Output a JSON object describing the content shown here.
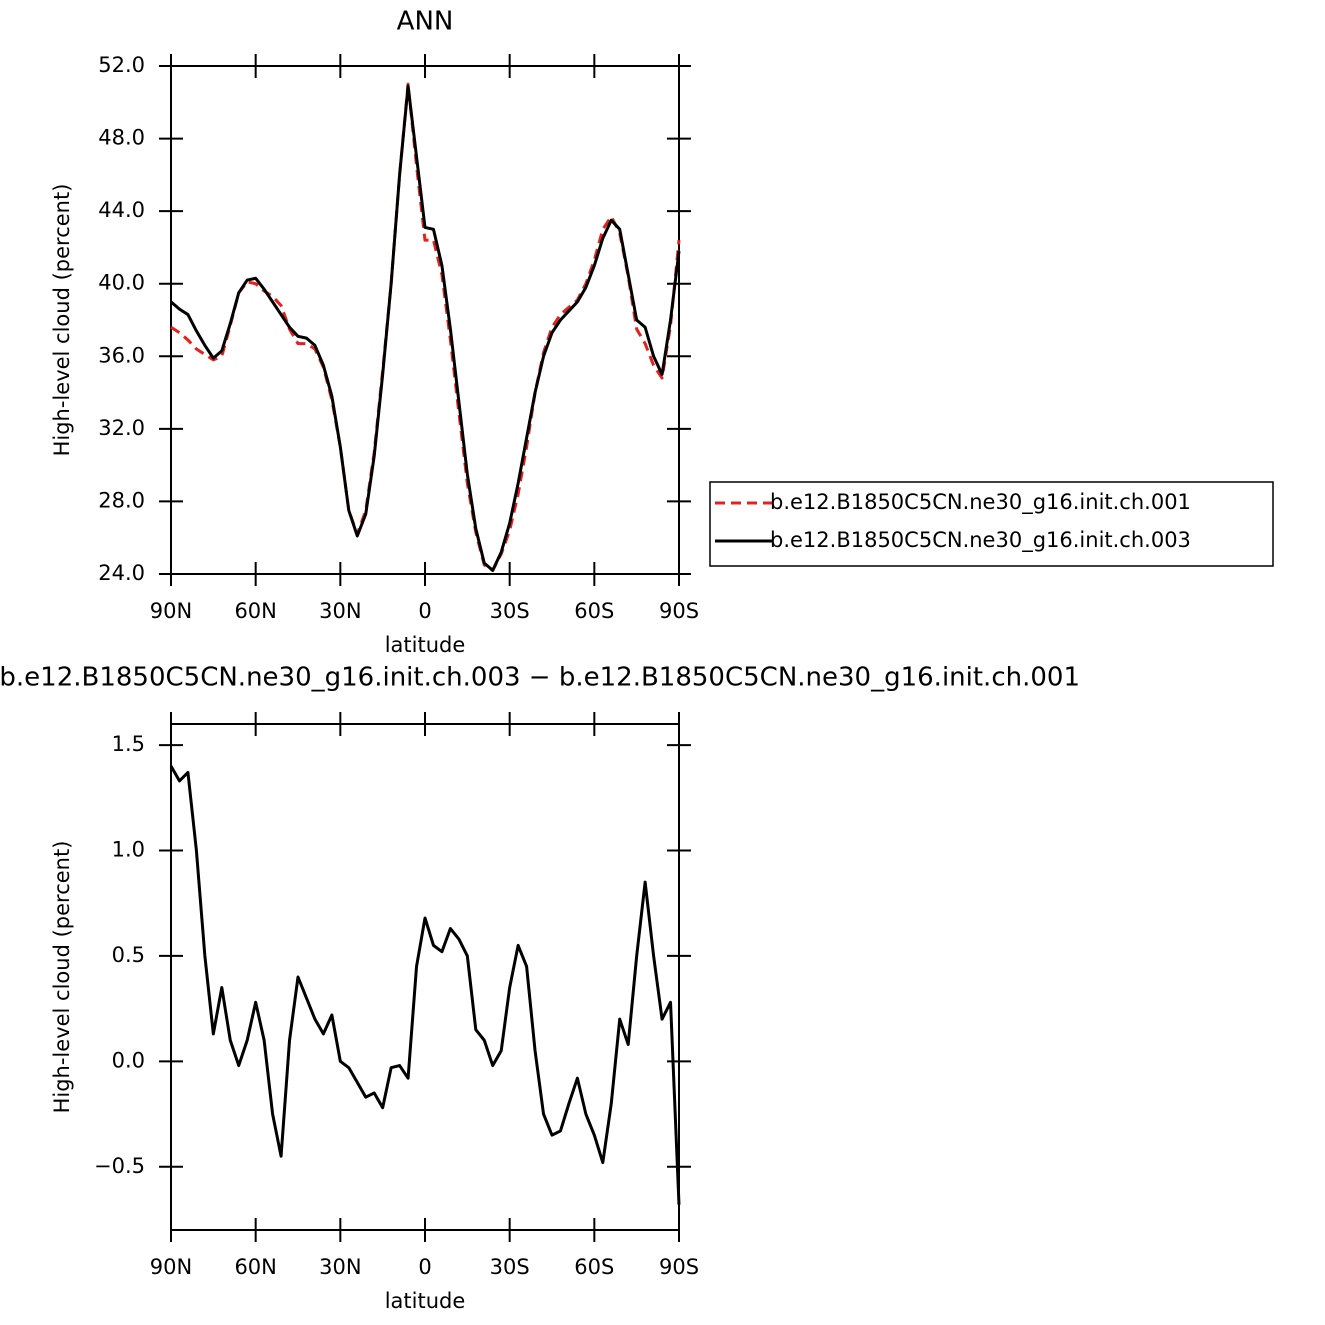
{
  "chart_data": [
    {
      "type": "line",
      "title": "ANN",
      "xlabel": "latitude",
      "ylabel": "High-level cloud (percent)",
      "x": [
        90,
        87,
        84,
        81,
        78,
        75,
        72,
        69,
        66,
        63,
        60,
        57,
        54,
        51,
        48,
        45,
        42,
        39,
        36,
        33,
        30,
        27,
        24,
        21,
        18,
        15,
        12,
        9,
        6,
        3,
        0,
        -3,
        -6,
        -9,
        -12,
        -15,
        -18,
        -21,
        -24,
        -27,
        -30,
        -33,
        -36,
        -39,
        -42,
        -45,
        -48,
        -51,
        -54,
        -57,
        -60,
        -63,
        -66,
        -69,
        -72,
        -75,
        -78,
        -81,
        -84,
        -87,
        -90
      ],
      "series": [
        {
          "name": "b.e12.B1850C5CN.ne30_g16.init.ch.001",
          "color": "#e8201c",
          "linestyle": "dashed",
          "values": [
            37.6,
            37.3,
            36.9,
            36.4,
            36.1,
            35.8,
            36.0,
            37.7,
            39.5,
            40.1,
            40.0,
            39.6,
            39.3,
            38.8,
            37.5,
            36.7,
            36.7,
            36.4,
            35.4,
            33.6,
            31.0,
            27.5,
            26.2,
            27.5,
            30.7,
            35.2,
            40.0,
            46.0,
            51.0,
            46.5,
            42.4,
            42.4,
            40.5,
            36.9,
            32.9,
            29.0,
            26.3,
            24.5,
            24.2,
            25.1,
            26.4,
            28.4,
            31.0,
            34.0,
            36.2,
            37.6,
            38.3,
            38.7,
            39.1,
            40.0,
            41.3,
            43.0,
            43.7,
            42.8,
            40.4,
            37.5,
            36.7,
            35.5,
            34.8,
            37.7,
            42.4
          ]
        },
        {
          "name": "b.e12.B1850C5CN.ne30_g16.init.ch.003",
          "color": "#000000",
          "linestyle": "solid",
          "values": [
            39.0,
            38.6,
            38.3,
            37.4,
            36.6,
            35.9,
            36.3,
            37.8,
            39.5,
            40.2,
            40.3,
            39.7,
            39.0,
            38.3,
            37.6,
            37.1,
            37.0,
            36.6,
            35.5,
            33.8,
            31.0,
            27.5,
            26.1,
            27.3,
            30.5,
            35.0,
            40.0,
            46.0,
            50.9,
            47.0,
            43.1,
            43.0,
            41.0,
            37.5,
            33.5,
            29.5,
            26.5,
            24.6,
            24.2,
            25.2,
            26.8,
            29.0,
            31.5,
            34.0,
            36.0,
            37.3,
            38.0,
            38.5,
            39.0,
            39.8,
            41.0,
            42.5,
            43.5,
            43.0,
            40.5,
            38.0,
            37.6,
            36.0,
            35.0,
            38.0,
            41.8
          ]
        }
      ],
      "xlim": [
        90,
        -90
      ],
      "xticks": [
        {
          "value": 90,
          "label": "90N"
        },
        {
          "value": 60,
          "label": "60N"
        },
        {
          "value": 30,
          "label": "30N"
        },
        0,
        {
          "value": -30,
          "label": "30S"
        },
        {
          "value": -60,
          "label": "60S"
        },
        {
          "value": -90,
          "label": "90S"
        }
      ],
      "ylim": [
        24,
        52
      ],
      "yticks": [
        {
          "value": 24,
          "label": "24.0"
        },
        {
          "value": 28,
          "label": "28.0"
        },
        {
          "value": 32,
          "label": "32.0"
        },
        {
          "value": 36,
          "label": "36.0"
        },
        {
          "value": 40,
          "label": "40.0"
        },
        {
          "value": 44,
          "label": "44.0"
        },
        {
          "value": 48,
          "label": "48.0"
        },
        {
          "value": 52,
          "label": "52.0"
        }
      ],
      "legend": "right"
    },
    {
      "type": "line",
      "title": "b.e12.B1850C5CN.ne30_g16.init.ch.003 − b.e12.B1850C5CN.ne30_g16.init.ch.001",
      "xlabel": "latitude",
      "ylabel": "High-level cloud (percent)",
      "x": [
        90,
        87,
        84,
        81,
        78,
        75,
        72,
        69,
        66,
        63,
        60,
        57,
        54,
        51,
        48,
        45,
        42,
        39,
        36,
        33,
        30,
        27,
        24,
        21,
        18,
        15,
        12,
        9,
        6,
        3,
        0,
        -3,
        -6,
        -9,
        -12,
        -15,
        -18,
        -21,
        -24,
        -27,
        -30,
        -33,
        -36,
        -39,
        -42,
        -45,
        -48,
        -51,
        -54,
        -57,
        -60,
        -63,
        -66,
        -69,
        -72,
        -75,
        -78,
        -81,
        -84,
        -87,
        -90
      ],
      "series": [
        {
          "color": "#000000",
          "linestyle": "solid",
          "values": [
            1.4,
            1.33,
            1.37,
            1.0,
            0.5,
            0.13,
            0.35,
            0.1,
            -0.02,
            0.1,
            0.28,
            0.1,
            -0.25,
            -0.45,
            0.1,
            0.4,
            0.3,
            0.2,
            0.13,
            0.22,
            0.0,
            -0.03,
            -0.1,
            -0.17,
            -0.15,
            -0.22,
            -0.03,
            -0.02,
            -0.08,
            0.45,
            0.68,
            0.55,
            0.52,
            0.63,
            0.58,
            0.5,
            0.15,
            0.1,
            -0.02,
            0.05,
            0.35,
            0.55,
            0.45,
            0.05,
            -0.25,
            -0.35,
            -0.33,
            -0.2,
            -0.08,
            -0.25,
            -0.35,
            -0.48,
            -0.2,
            0.2,
            0.08,
            0.5,
            0.85,
            0.5,
            0.2,
            0.28,
            -0.68
          ]
        }
      ],
      "xlim": [
        90,
        -90
      ],
      "xticks": [
        {
          "value": 90,
          "label": "90N"
        },
        {
          "value": 60,
          "label": "60N"
        },
        {
          "value": 30,
          "label": "30N"
        },
        0,
        {
          "value": -30,
          "label": "30S"
        },
        {
          "value": -60,
          "label": "60S"
        },
        {
          "value": -90,
          "label": "90S"
        }
      ],
      "ylim": [
        -0.8,
        1.6
      ],
      "yticks": [
        {
          "value": -0.5,
          "label": "−0.5"
        },
        {
          "value": 0,
          "label": "0.0"
        },
        {
          "value": 0.5,
          "label": "0.5"
        },
        {
          "value": 1,
          "label": "1.0"
        },
        {
          "value": 1.5,
          "label": "1.5"
        }
      ]
    }
  ]
}
